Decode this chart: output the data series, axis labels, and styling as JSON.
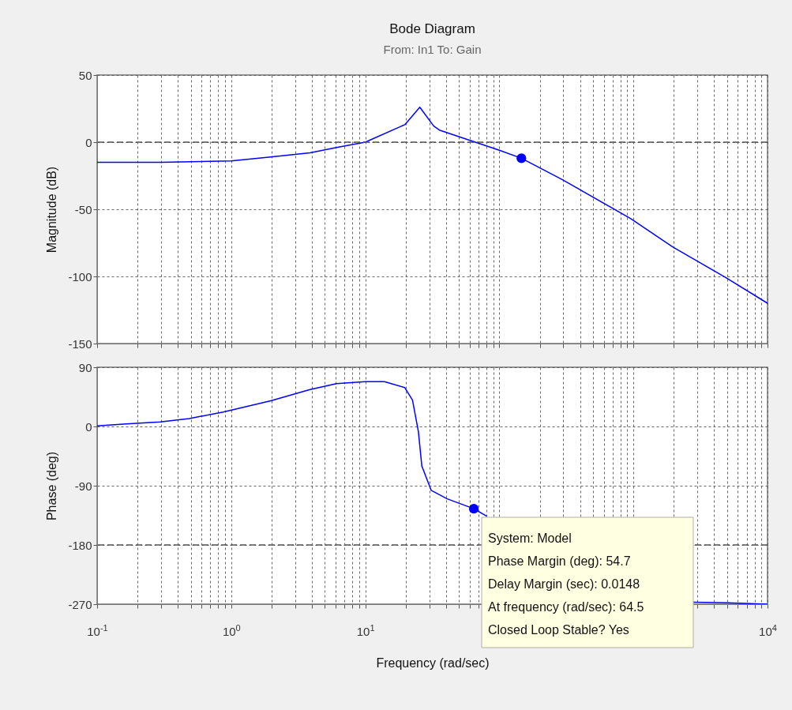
{
  "chart_data": [
    {
      "type": "line",
      "title": "Bode Diagram",
      "subtitle": "From: In1  To: Gain",
      "ylabel": "Magnitude (dB)",
      "log": "x",
      "grid": true,
      "tick_labels": "y",
      "xlim": [
        0.1,
        10000
      ],
      "ylim": [
        -150,
        50
      ],
      "yticks": [
        -150,
        -100,
        -50,
        0,
        50
      ],
      "xticks": [
        {
          "value": 0.1,
          "label": null
        },
        {
          "value": 0.2,
          "label": null
        },
        {
          "value": 0.3,
          "label": null
        },
        {
          "value": 0.4,
          "label": null
        },
        {
          "value": 0.5,
          "label": null
        },
        {
          "value": 0.6,
          "label": null
        },
        {
          "value": 0.7,
          "label": null
        },
        {
          "value": 0.8,
          "label": null
        },
        {
          "value": 0.9,
          "label": null
        },
        {
          "value": 1,
          "label": null
        },
        {
          "value": 2,
          "label": null
        },
        {
          "value": 3,
          "label": null
        },
        {
          "value": 4,
          "label": null
        },
        {
          "value": 5,
          "label": null
        },
        {
          "value": 6,
          "label": null
        },
        {
          "value": 7,
          "label": null
        },
        {
          "value": 8,
          "label": null
        },
        {
          "value": 9,
          "label": null
        },
        {
          "value": 10,
          "label": null
        },
        {
          "value": 20,
          "label": null
        },
        {
          "value": 30,
          "label": null
        },
        {
          "value": 40,
          "label": null
        },
        {
          "value": 50,
          "label": null
        },
        {
          "value": 60,
          "label": null
        },
        {
          "value": 70,
          "label": null
        },
        {
          "value": 80,
          "label": null
        },
        {
          "value": 90,
          "label": null
        },
        {
          "value": 100,
          "label": null
        },
        {
          "value": 200,
          "label": null
        },
        {
          "value": 300,
          "label": null
        },
        {
          "value": 400,
          "label": null
        },
        {
          "value": 500,
          "label": null
        },
        {
          "value": 600,
          "label": null
        },
        {
          "value": 700,
          "label": null
        },
        {
          "value": 800,
          "label": null
        },
        {
          "value": 900,
          "label": null
        },
        {
          "value": 1000,
          "label": null
        },
        {
          "value": 2000,
          "label": null
        },
        {
          "value": 3000,
          "label": null
        },
        {
          "value": 4000,
          "label": null
        },
        {
          "value": 5000,
          "label": null
        },
        {
          "value": 6000,
          "label": null
        },
        {
          "value": 7000,
          "label": null
        },
        {
          "value": 8000,
          "label": null
        },
        {
          "value": 9000,
          "label": null
        },
        {
          "value": 10000,
          "label": null
        }
      ],
      "ref_lines": [
        {
          "axis": "y",
          "value": 0,
          "color": "#555555",
          "line_style": "dashed"
        }
      ],
      "series": [
        {
          "color": "#0000ff",
          "x": [
            0.1,
            0.3,
            1,
            1.97,
            3.87,
            6.1,
            10,
            19.7,
            25.5,
            32.4,
            35.7,
            100,
            146,
            296,
            955,
            1960,
            4900,
            10000
          ],
          "values": [
            -15,
            -15,
            -14,
            -11,
            -8,
            -4,
            0,
            13,
            26,
            12,
            9,
            -6,
            -12,
            -28,
            -57,
            -78,
            -101,
            -120
          ]
        },
        {
          "type": "scatter",
          "marker": "circle",
          "color": "#0000ff",
          "x": [
            146
          ],
          "values": [
            -12
          ]
        }
      ]
    },
    {
      "type": "line",
      "xlabel": "Frequency  (rad/sec)",
      "ylabel": "Phase (deg)",
      "log": "x",
      "grid": true,
      "xlim": [
        0.1,
        10000
      ],
      "ylim": [
        -270,
        90
      ],
      "yticks": [
        -270,
        -180,
        -90,
        0,
        90
      ],
      "xticks": [
        {
          "value": 0.1,
          "label": "10$^{-1}$"
        },
        {
          "value": 0.2,
          "label": null
        },
        {
          "value": 0.3,
          "label": null
        },
        {
          "value": 0.4,
          "label": null
        },
        {
          "value": 0.5,
          "label": null
        },
        {
          "value": 0.6,
          "label": null
        },
        {
          "value": 0.7,
          "label": null
        },
        {
          "value": 0.8,
          "label": null
        },
        {
          "value": 0.9,
          "label": null
        },
        {
          "value": 1,
          "label": "10$^{0}$"
        },
        {
          "value": 2,
          "label": null
        },
        {
          "value": 3,
          "label": null
        },
        {
          "value": 4,
          "label": null
        },
        {
          "value": 5,
          "label": null
        },
        {
          "value": 6,
          "label": null
        },
        {
          "value": 7,
          "label": null
        },
        {
          "value": 8,
          "label": null
        },
        {
          "value": 9,
          "label": null
        },
        {
          "value": 10,
          "label": "10$^{1}$"
        },
        {
          "value": 20,
          "label": null
        },
        {
          "value": 30,
          "label": null
        },
        {
          "value": 40,
          "label": null
        },
        {
          "value": 50,
          "label": null
        },
        {
          "value": 60,
          "label": null
        },
        {
          "value": 70,
          "label": null
        },
        {
          "value": 80,
          "label": null
        },
        {
          "value": 90,
          "label": null
        },
        {
          "value": 100,
          "label": null
        },
        {
          "value": 200,
          "label": null
        },
        {
          "value": 300,
          "label": null
        },
        {
          "value": 400,
          "label": null
        },
        {
          "value": 500,
          "label": null
        },
        {
          "value": 600,
          "label": null
        },
        {
          "value": 700,
          "label": null
        },
        {
          "value": 800,
          "label": null
        },
        {
          "value": 900,
          "label": null
        },
        {
          "value": 1000,
          "label": null
        },
        {
          "value": 2000,
          "label": null
        },
        {
          "value": 3000,
          "label": null
        },
        {
          "value": 4000,
          "label": null
        },
        {
          "value": 5000,
          "label": null
        },
        {
          "value": 6000,
          "label": null
        },
        {
          "value": 7000,
          "label": null
        },
        {
          "value": 8000,
          "label": null
        },
        {
          "value": 9000,
          "label": null
        },
        {
          "value": 10000,
          "label": "10$^{4}$"
        }
      ],
      "ref_lines": [
        {
          "axis": "y",
          "value": -180,
          "color": "#555555",
          "line_style": "dashed"
        }
      ],
      "annotations": [
        "System: Model",
        "Phase Margin (deg): 54.7",
        "Delay Margin (sec): 0.0148",
        "At frequency (rad/sec): 64.5",
        "Closed Loop Stable? Yes"
      ],
      "series": [
        {
          "color": "#0000ff",
          "x": [
            0.1,
            0.165,
            0.295,
            0.487,
            0.87,
            1.97,
            3.87,
            6.1,
            10,
            13.9,
            19.7,
            22.5,
            24.9,
            26.4,
            31,
            40.8,
            64.5,
            80,
            300,
            2800,
            5000,
            10000
          ],
          "values": [
            1,
            4,
            7,
            12,
            22,
            39,
            56,
            65,
            68,
            68,
            59,
            40,
            -8,
            -60,
            -97,
            -110,
            -125,
            -136,
            null,
            -267,
            -268,
            -270
          ]
        },
        {
          "type": "scatter",
          "marker": "circle",
          "color": "#0000ff",
          "x": [
            64.5
          ],
          "values": [
            -125
          ]
        }
      ]
    }
  ]
}
